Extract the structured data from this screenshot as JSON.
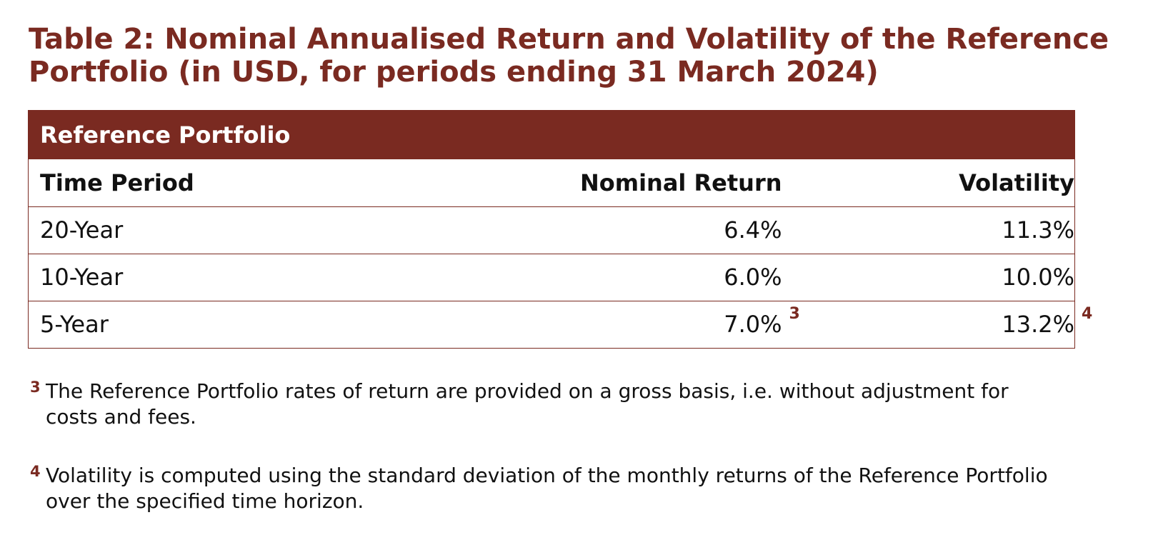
{
  "title": {
    "line1": "Table 2: Nominal Annualised Return and Volatility of the Reference",
    "line2": "Portfolio (in USD, for periods ending 31 March 2024)"
  },
  "table": {
    "banner": "Reference Portfolio",
    "headers": {
      "period": "Time Period",
      "return": "Nominal Return",
      "volatility": "Volatility"
    },
    "rows": [
      {
        "period": "20-Year",
        "return": "6.4%",
        "volatility": "11.3%",
        "return_ref": "",
        "volatility_ref": ""
      },
      {
        "period": "10-Year",
        "return": "6.0%",
        "volatility": "10.0%",
        "return_ref": "",
        "volatility_ref": ""
      },
      {
        "period": "5-Year",
        "return": "7.0%",
        "volatility": "13.2%",
        "return_ref": "3",
        "volatility_ref": "4"
      }
    ]
  },
  "footnotes": [
    {
      "marker": "3",
      "text": "The Reference Portfolio rates of return are provided on a gross basis, i.e. without adjustment for costs and fees."
    },
    {
      "marker": "4",
      "text": "Volatility is computed using the standard deviation of the monthly returns of the Reference Portfolio over the specified time horizon."
    }
  ],
  "colors": {
    "accent": "#7a2a21",
    "text": "#111111"
  }
}
